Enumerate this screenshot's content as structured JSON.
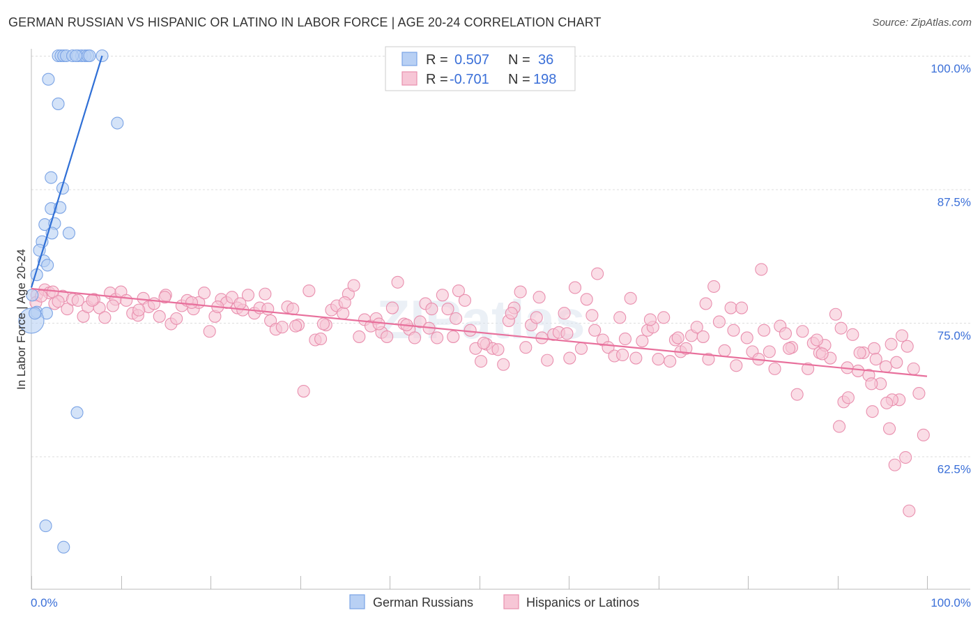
{
  "title": "GERMAN RUSSIAN VS HISPANIC OR LATINO IN LABOR FORCE | AGE 20-24 CORRELATION CHART",
  "source": "Source: ZipAtlas.com",
  "watermark": "ZIPatlas",
  "colors": {
    "blue_fill": "#b8d0f4",
    "blue_stroke": "#7aa3e5",
    "blue_line": "#2f6fd6",
    "pink_fill": "#f7c6d6",
    "pink_stroke": "#e98fae",
    "pink_line": "#e8709c",
    "axis_label": "#3a6fd8",
    "grid": "#dddddd"
  },
  "legend": {
    "rows": [
      {
        "r_label": "R =",
        "r_value": "0.507",
        "n_label": "N =",
        "n_value": "36",
        "color": "blue"
      },
      {
        "r_label": "R =",
        "r_value": "-0.701",
        "n_label": "N =",
        "n_value": "198",
        "color": "pink"
      }
    ]
  },
  "bottom_legend": [
    {
      "label": "German Russians",
      "color": "blue"
    },
    {
      "label": "Hispanics or Latinos",
      "color": "pink"
    }
  ],
  "chart_data": {
    "type": "scatter",
    "xlabel": "",
    "ylabel": "In Labor Force | Age 20-24",
    "xlim": [
      0,
      100
    ],
    "ylim": [
      50,
      101
    ],
    "x_tick_labels": [
      "0.0%",
      "100.0%"
    ],
    "y_ticks": [
      {
        "value": 100,
        "label": "100.0%"
      },
      {
        "value": 87.5,
        "label": "87.5%"
      },
      {
        "value": 75,
        "label": "75.0%"
      },
      {
        "value": 62.5,
        "label": "62.5%"
      }
    ],
    "grid": true,
    "series": [
      {
        "name": "German Russians",
        "color": "blue",
        "trend": {
          "x0": 0,
          "y0": 78.3,
          "x1": 7.9,
          "y1": 100
        },
        "points": [
          [
            3.0,
            100
          ],
          [
            3.3,
            100
          ],
          [
            3.6,
            100
          ],
          [
            3.9,
            100
          ],
          [
            5.2,
            100
          ],
          [
            5.6,
            100
          ],
          [
            6.0,
            100
          ],
          [
            6.3,
            100
          ],
          [
            4.6,
            100
          ],
          [
            7.9,
            100
          ],
          [
            5.0,
            100
          ],
          [
            6.5,
            100
          ],
          [
            1.9,
            97.8
          ],
          [
            3.0,
            95.5
          ],
          [
            9.6,
            93.7
          ],
          [
            2.2,
            88.6
          ],
          [
            3.5,
            87.6
          ],
          [
            2.2,
            85.7
          ],
          [
            3.2,
            85.8
          ],
          [
            1.5,
            84.2
          ],
          [
            2.6,
            84.3
          ],
          [
            4.2,
            83.4
          ],
          [
            2.3,
            83.4
          ],
          [
            1.2,
            82.6
          ],
          [
            0.9,
            81.8
          ],
          [
            1.4,
            80.8
          ],
          [
            1.8,
            80.4
          ],
          [
            0.6,
            79.5
          ],
          [
            0.1,
            77.6
          ],
          [
            0.6,
            76.0
          ],
          [
            1.7,
            75.9
          ],
          [
            0.0,
            75.2
          ],
          [
            5.1,
            66.6
          ],
          [
            1.6,
            56.0
          ],
          [
            3.6,
            54.0
          ],
          [
            0.4,
            75.9
          ]
        ]
      },
      {
        "name": "Hispanics or Latinos",
        "color": "pink",
        "trend": {
          "x0": 0,
          "y0": 78.2,
          "x1": 100,
          "y1": 70.0
        },
        "points": [
          [
            0.6,
            77.6
          ],
          [
            1.5,
            78.1
          ],
          [
            2.0,
            77.8
          ],
          [
            2.6,
            76.8
          ],
          [
            3.5,
            77.5
          ],
          [
            4.0,
            76.3
          ],
          [
            4.6,
            77.2
          ],
          [
            5.2,
            77.1
          ],
          [
            5.8,
            75.6
          ],
          [
            6.3,
            76.5
          ],
          [
            7.0,
            77.2
          ],
          [
            7.6,
            76.4
          ],
          [
            8.2,
            75.5
          ],
          [
            8.8,
            77.8
          ],
          [
            9.4,
            77.2
          ],
          [
            10.0,
            77.9
          ],
          [
            10.6,
            77.1
          ],
          [
            11.3,
            75.9
          ],
          [
            11.9,
            75.7
          ],
          [
            12.5,
            77.3
          ],
          [
            13.1,
            76.5
          ],
          [
            13.7,
            76.8
          ],
          [
            14.3,
            75.6
          ],
          [
            15.0,
            77.6
          ],
          [
            15.6,
            74.9
          ],
          [
            16.2,
            75.4
          ],
          [
            16.8,
            76.6
          ],
          [
            17.4,
            77.1
          ],
          [
            18.1,
            76.3
          ],
          [
            18.7,
            76.9
          ],
          [
            19.3,
            77.8
          ],
          [
            19.9,
            74.2
          ],
          [
            20.5,
            75.6
          ],
          [
            21.2,
            77.2
          ],
          [
            21.8,
            76.9
          ],
          [
            22.4,
            77.4
          ],
          [
            23.0,
            76.4
          ],
          [
            23.6,
            76.2
          ],
          [
            24.2,
            77.6
          ],
          [
            24.9,
            75.9
          ],
          [
            25.5,
            76.4
          ],
          [
            26.1,
            77.7
          ],
          [
            26.7,
            75.2
          ],
          [
            27.3,
            74.4
          ],
          [
            28.0,
            74.6
          ],
          [
            28.6,
            76.5
          ],
          [
            29.2,
            76.3
          ],
          [
            29.8,
            74.8
          ],
          [
            30.4,
            68.6
          ],
          [
            31.0,
            78.0
          ],
          [
            31.7,
            73.4
          ],
          [
            32.3,
            73.5
          ],
          [
            32.9,
            74.8
          ],
          [
            33.5,
            76.2
          ],
          [
            34.1,
            76.6
          ],
          [
            34.8,
            75.9
          ],
          [
            35.4,
            77.7
          ],
          [
            36.0,
            78.5
          ],
          [
            36.6,
            73.7
          ],
          [
            37.2,
            75.3
          ],
          [
            37.9,
            74.7
          ],
          [
            38.5,
            75.4
          ],
          [
            39.1,
            74.1
          ],
          [
            39.7,
            73.7
          ],
          [
            40.3,
            76.4
          ],
          [
            40.9,
            78.8
          ],
          [
            41.6,
            74.9
          ],
          [
            42.2,
            74.4
          ],
          [
            42.8,
            73.6
          ],
          [
            43.4,
            75.1
          ],
          [
            44.0,
            76.8
          ],
          [
            44.7,
            76.3
          ],
          [
            45.3,
            73.6
          ],
          [
            45.9,
            77.6
          ],
          [
            46.5,
            76.3
          ],
          [
            47.1,
            73.7
          ],
          [
            47.7,
            78.0
          ],
          [
            48.4,
            77.1
          ],
          [
            49.0,
            74.3
          ],
          [
            49.6,
            72.6
          ],
          [
            50.2,
            71.4
          ],
          [
            50.8,
            73.0
          ],
          [
            51.5,
            72.6
          ],
          [
            52.1,
            72.5
          ],
          [
            52.7,
            71.1
          ],
          [
            53.3,
            75.2
          ],
          [
            53.9,
            76.4
          ],
          [
            54.6,
            77.9
          ],
          [
            55.2,
            72.7
          ],
          [
            55.8,
            74.8
          ],
          [
            56.4,
            75.5
          ],
          [
            57.0,
            73.6
          ],
          [
            57.6,
            71.5
          ],
          [
            58.3,
            73.9
          ],
          [
            58.9,
            74.1
          ],
          [
            59.5,
            75.9
          ],
          [
            60.1,
            71.7
          ],
          [
            60.7,
            78.3
          ],
          [
            61.4,
            72.6
          ],
          [
            62.0,
            77.2
          ],
          [
            62.6,
            75.7
          ],
          [
            63.2,
            79.6
          ],
          [
            63.8,
            73.4
          ],
          [
            64.4,
            72.7
          ],
          [
            65.1,
            71.9
          ],
          [
            65.7,
            75.5
          ],
          [
            66.3,
            73.5
          ],
          [
            66.9,
            77.3
          ],
          [
            67.5,
            71.7
          ],
          [
            68.2,
            73.3
          ],
          [
            68.8,
            74.3
          ],
          [
            69.4,
            74.6
          ],
          [
            70.0,
            71.6
          ],
          [
            70.6,
            75.5
          ],
          [
            71.3,
            71.4
          ],
          [
            71.9,
            73.4
          ],
          [
            72.5,
            72.3
          ],
          [
            73.1,
            72.6
          ],
          [
            73.7,
            73.8
          ],
          [
            74.3,
            74.6
          ],
          [
            75.0,
            73.7
          ],
          [
            75.6,
            71.6
          ],
          [
            76.2,
            78.4
          ],
          [
            76.8,
            75.1
          ],
          [
            77.4,
            72.4
          ],
          [
            78.1,
            76.4
          ],
          [
            78.7,
            71.0
          ],
          [
            79.3,
            76.4
          ],
          [
            79.9,
            73.6
          ],
          [
            80.5,
            72.3
          ],
          [
            81.2,
            71.6
          ],
          [
            81.8,
            74.3
          ],
          [
            82.4,
            72.3
          ],
          [
            83.0,
            70.7
          ],
          [
            83.6,
            74.7
          ],
          [
            84.2,
            74.0
          ],
          [
            84.9,
            72.7
          ],
          [
            85.5,
            68.3
          ],
          [
            86.1,
            74.2
          ],
          [
            86.7,
            70.7
          ],
          [
            87.3,
            73.1
          ],
          [
            88.0,
            72.2
          ],
          [
            88.6,
            72.9
          ],
          [
            89.2,
            71.7
          ],
          [
            89.8,
            75.8
          ],
          [
            90.4,
            74.5
          ],
          [
            91.1,
            70.8
          ],
          [
            91.7,
            73.9
          ],
          [
            92.3,
            70.5
          ],
          [
            92.9,
            72.2
          ],
          [
            93.5,
            70.1
          ],
          [
            94.1,
            72.6
          ],
          [
            94.8,
            69.3
          ],
          [
            95.4,
            70.9
          ],
          [
            96.0,
            73.0
          ],
          [
            96.6,
            71.3
          ],
          [
            97.2,
            73.8
          ],
          [
            97.8,
            72.8
          ],
          [
            98.5,
            70.7
          ],
          [
            99.1,
            68.4
          ],
          [
            0.5,
            76.9
          ],
          [
            1.1,
            77.5
          ],
          [
            2.4,
            77.9
          ],
          [
            3.0,
            77.0
          ],
          [
            6.8,
            77.1
          ],
          [
            9.1,
            76.6
          ],
          [
            12.0,
            76.2
          ],
          [
            14.9,
            77.4
          ],
          [
            17.9,
            76.9
          ],
          [
            20.8,
            76.5
          ],
          [
            23.3,
            76.8
          ],
          [
            26.4,
            76.3
          ],
          [
            29.5,
            74.7
          ],
          [
            32.6,
            74.9
          ],
          [
            35.0,
            76.9
          ],
          [
            38.8,
            74.9
          ],
          [
            41.9,
            74.8
          ],
          [
            44.4,
            74.5
          ],
          [
            47.4,
            75.4
          ],
          [
            50.5,
            73.1
          ],
          [
            53.6,
            75.9
          ],
          [
            56.7,
            77.4
          ],
          [
            59.8,
            74.0
          ],
          [
            62.9,
            74.3
          ],
          [
            66.0,
            72.0
          ],
          [
            69.1,
            75.3
          ],
          [
            72.2,
            73.6
          ],
          [
            75.3,
            76.8
          ],
          [
            78.4,
            74.3
          ],
          [
            81.5,
            80.0
          ],
          [
            84.6,
            72.6
          ],
          [
            87.7,
            73.4
          ],
          [
            90.7,
            67.6
          ],
          [
            93.8,
            69.3
          ],
          [
            96.9,
            67.8
          ],
          [
            99.6,
            64.5
          ],
          [
            97.6,
            62.4
          ],
          [
            96.4,
            61.7
          ],
          [
            98.0,
            57.4
          ],
          [
            95.8,
            65.1
          ],
          [
            96.1,
            67.8
          ],
          [
            90.2,
            65.3
          ],
          [
            95.5,
            67.5
          ],
          [
            88.3,
            72.1
          ],
          [
            92.5,
            72.2
          ],
          [
            94.3,
            71.6
          ],
          [
            91.2,
            68.0
          ],
          [
            93.9,
            66.7
          ]
        ]
      }
    ]
  }
}
